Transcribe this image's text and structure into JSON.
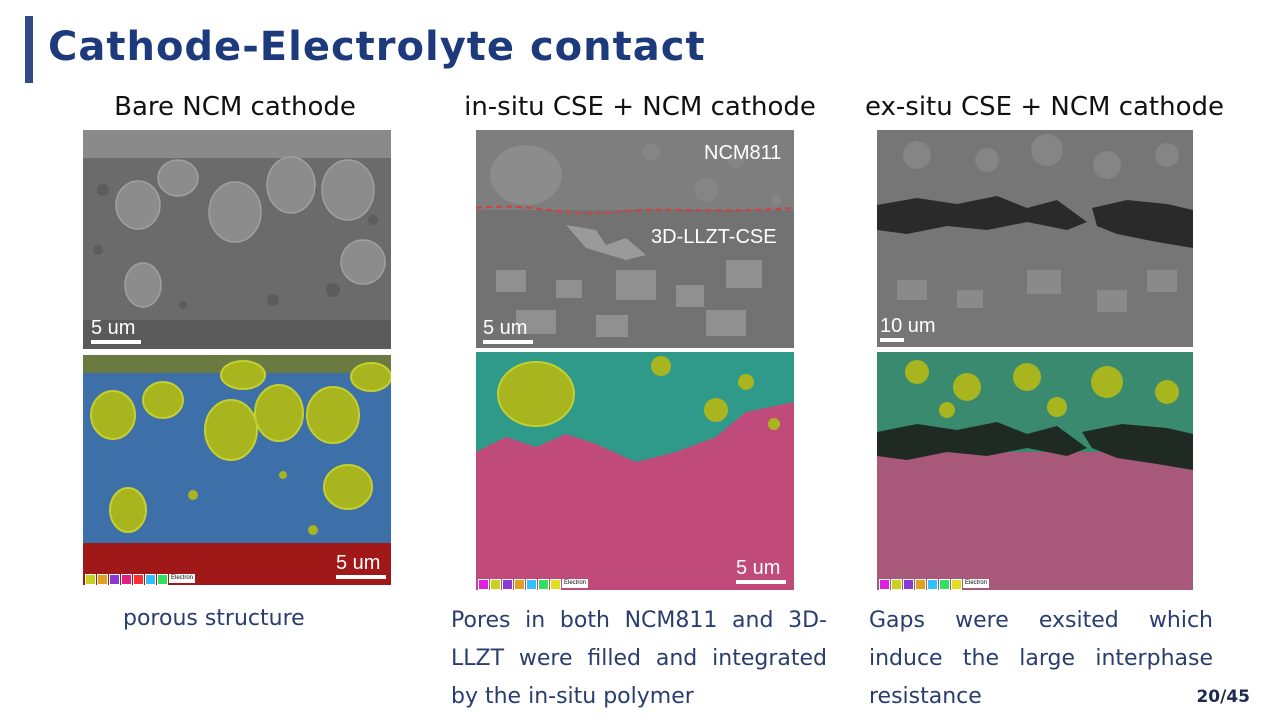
{
  "slide": {
    "title": "Cathode-Electrolyte contact",
    "page_number": "20/45"
  },
  "columns": [
    {
      "heading": "Bare NCM cathode",
      "sem_scale": "5 um",
      "eds_scale": "5 um",
      "caption": "porous structure"
    },
    {
      "heading": "in-situ CSE + NCM cathode",
      "sem_scale": "5 um",
      "eds_scale": "5 um",
      "label_top": "NCM811",
      "label_bottom": "3D-LLZT-CSE",
      "caption": "Pores in both NCM811 and 3D-LLZT were filled and integrated by the in-situ polymer"
    },
    {
      "heading": "ex-situ CSE + NCM cathode",
      "sem_scale": "10 um",
      "caption": "Gaps were exsited which induce the large interphase resistance"
    }
  ],
  "eds_legend": {
    "electron_label": "Electron",
    "colors": [
      "#c9d21a",
      "#e0a020",
      "#8a3ad0",
      "#e02080",
      "#ff3030",
      "#30c0ff",
      "#30e060",
      "#e0e020"
    ]
  },
  "colors": {
    "title": "#1d3a7c",
    "accent_bar": "#2f4a85",
    "caption": "#2a3d6e",
    "sem_gray": "#6e6e6e",
    "eds_blue": "#3d6fa8",
    "eds_green_particle": "#a8b51e",
    "eds_teal": "#2f9a8a",
    "eds_pink": "#c04a7a",
    "eds_red_substrate": "#a01818"
  }
}
